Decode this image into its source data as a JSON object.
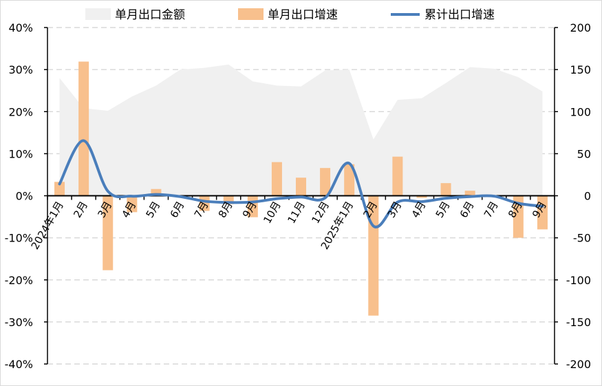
{
  "chart_data": {
    "type": "combo",
    "categories": [
      "2024年1月",
      "2月",
      "3月",
      "4月",
      "5月",
      "6月",
      "7月",
      "8月",
      "9月",
      "10月",
      "11月",
      "12月",
      "2025年1月",
      "2月",
      "3月",
      "4月",
      "5月",
      "6月",
      "7月",
      "8月",
      "9月"
    ],
    "series": [
      {
        "name": "单月出口金额",
        "type": "area",
        "axis": "right",
        "color": "#f0f0f0",
        "values": [
          140,
          104,
          101,
          118,
          131,
          150,
          152,
          156,
          136,
          131,
          130,
          149,
          150,
          67,
          114,
          116,
          134,
          153,
          151,
          141,
          124
        ]
      },
      {
        "name": "单月出口增速",
        "type": "bar",
        "axis": "left",
        "color": "#f8c08d",
        "values": [
          3.3,
          31.9,
          -17.7,
          -3.9,
          1.6,
          -0.2,
          -3.6,
          -2.0,
          -5.1,
          8.0,
          4.3,
          6.6,
          7.5,
          -28.5,
          9.3,
          -0.5,
          3.0,
          1.2,
          0,
          -10.0,
          -8.0
        ]
      },
      {
        "name": "累计出口增速",
        "type": "line",
        "axis": "left",
        "color": "#4a7ebb",
        "values": [
          2.8,
          13.1,
          1.1,
          -0.1,
          0.3,
          -0.2,
          -1.3,
          -1.6,
          -1.5,
          -0.7,
          -0.3,
          -0.5,
          7.7,
          -7.2,
          -1.5,
          -1.4,
          -0.6,
          -0.2,
          -0.1,
          -1.8,
          -2.5
        ]
      }
    ],
    "left_axis": {
      "min": -40,
      "max": 40,
      "step": 10,
      "tick_labels": [
        "40%",
        "30%",
        "20%",
        "10%",
        "0%",
        "-10%",
        "-20%",
        "-30%",
        "-40%"
      ]
    },
    "right_axis": {
      "min": -200,
      "max": 200,
      "step": 50,
      "tick_labels": [
        "200",
        "150",
        "100",
        "50",
        "0",
        "-50",
        "-100",
        "-150",
        "-200"
      ]
    },
    "grid": "horizontal dashed",
    "legend": "top"
  }
}
